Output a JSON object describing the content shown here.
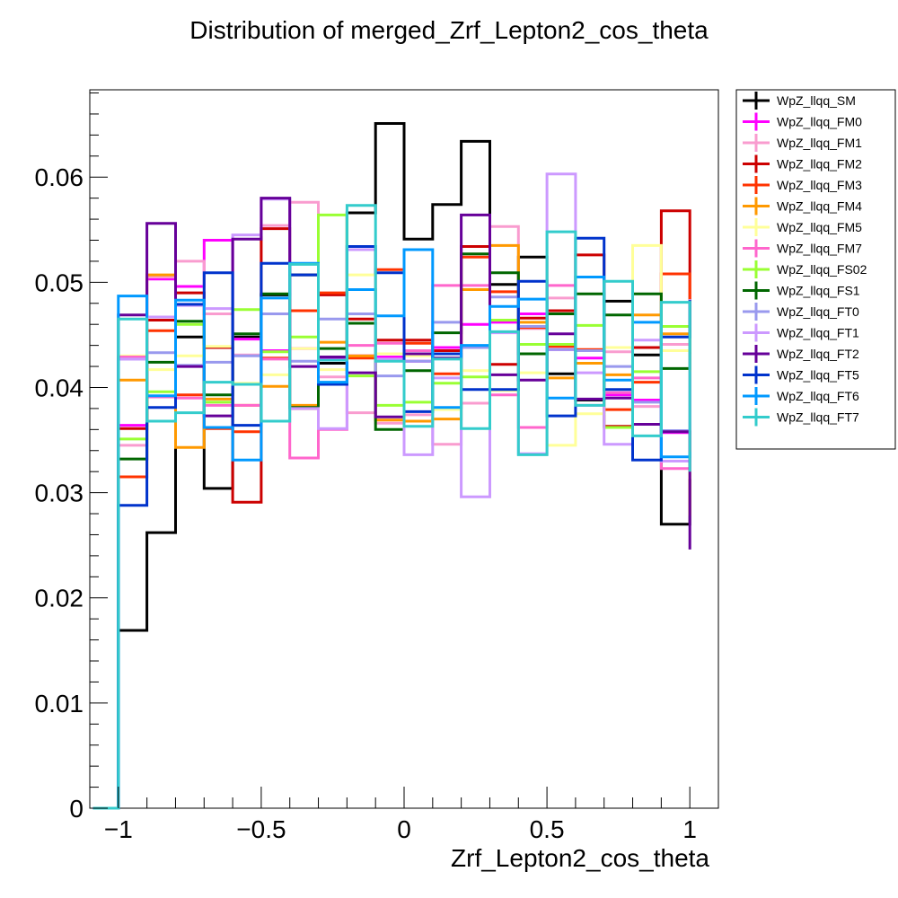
{
  "chart_data": {
    "type": "line",
    "title": "Distribution of merged_Zrf_Lepton2_cos_theta",
    "xlabel": "Zrf_Lepton2_cos_theta",
    "ylabel": "",
    "xlim": [
      -1.1,
      1.1
    ],
    "ylim": [
      0,
      0.0683
    ],
    "grid": false,
    "legend_position": "right",
    "x_ticks": [
      {
        "value": -1,
        "label": "−1"
      },
      {
        "value": -0.5,
        "label": "−0.5"
      },
      {
        "value": 0,
        "label": "0"
      },
      {
        "value": 0.5,
        "label": "0.5"
      },
      {
        "value": 1,
        "label": "1"
      }
    ],
    "y_ticks": [
      {
        "value": 0,
        "label": "0"
      },
      {
        "value": 0.01,
        "label": "0.01"
      },
      {
        "value": 0.02,
        "label": "0.02"
      },
      {
        "value": 0.03,
        "label": "0.03"
      },
      {
        "value": 0.04,
        "label": "0.04"
      },
      {
        "value": 0.05,
        "label": "0.05"
      },
      {
        "value": 0.06,
        "label": "0.06"
      }
    ],
    "x_bin_edges": [
      -1.0,
      -0.9,
      -0.8,
      -0.7,
      -0.6,
      -0.5,
      -0.4,
      -0.3,
      -0.2,
      -0.1,
      0.0,
      0.1,
      0.2,
      0.3,
      0.4,
      0.5,
      0.6,
      0.7,
      0.8,
      0.9,
      1.0
    ],
    "series": [
      {
        "name": "WpZ_llqq_SM",
        "color": "#000000",
        "values": [
          0.0169,
          0.0262,
          0.0448,
          0.0304,
          0.0448,
          0.0488,
          0.0507,
          0.0423,
          0.0566,
          0.0651,
          0.0541,
          0.0574,
          0.0634,
          0.0498,
          0.0524,
          0.0413,
          0.0388,
          0.0482,
          0.0431,
          0.027,
          0.0313
        ]
      },
      {
        "name": "WpZ_llqq_FM0",
        "color": "#ff00ff",
        "values": [
          0.0364,
          0.0503,
          0.0496,
          0.054,
          0.0446,
          0.0435,
          0.0437,
          0.0427,
          0.043,
          0.0429,
          0.0425,
          0.0438,
          0.046,
          0.0462,
          0.047,
          0.0436,
          0.0428,
          0.0393,
          0.0388,
          0.0357,
          0.0367
        ]
      },
      {
        "name": "WpZ_llqq_FM1",
        "color": "#f99ccf",
        "values": [
          0.0345,
          0.0505,
          0.052,
          0.047,
          0.0431,
          0.0554,
          0.0576,
          0.041,
          0.0376,
          0.0366,
          0.0374,
          0.0346,
          0.0385,
          0.0553,
          0.0456,
          0.0485,
          0.0435,
          0.0434,
          0.0382,
          0.0441,
          0.0458
        ]
      },
      {
        "name": "WpZ_llqq_FM2",
        "color": "#cc0000",
        "values": [
          0.0361,
          0.0464,
          0.049,
          0.0438,
          0.0291,
          0.0551,
          0.038,
          0.0488,
          0.0465,
          0.0445,
          0.0445,
          0.0435,
          0.0534,
          0.0422,
          0.0466,
          0.0473,
          0.0526,
          0.0363,
          0.0438,
          0.0568,
          0.0432
        ]
      },
      {
        "name": "WpZ_llqq_FM3",
        "color": "#ff3300",
        "values": [
          0.0315,
          0.0454,
          0.0393,
          0.0361,
          0.0358,
          0.0428,
          0.0473,
          0.049,
          0.0428,
          0.0512,
          0.0442,
          0.0413,
          0.0524,
          0.0491,
          0.0457,
          0.0439,
          0.0436,
          0.0379,
          0.0405,
          0.0508,
          0.0333
        ]
      },
      {
        "name": "WpZ_llqq_FM4",
        "color": "#ff9900",
        "values": [
          0.0407,
          0.0507,
          0.0343,
          0.0389,
          0.0383,
          0.0401,
          0.0383,
          0.0443,
          0.043,
          0.0369,
          0.0368,
          0.037,
          0.0493,
          0.0535,
          0.0462,
          0.0409,
          0.0423,
          0.0412,
          0.0469,
          0.0451,
          0.0278
        ]
      },
      {
        "name": "WpZ_llqq_FM5",
        "color": "#ffff99",
        "values": [
          0.043,
          0.0417,
          0.043,
          0.0439,
          0.0404,
          0.0412,
          0.0437,
          0.0417,
          0.0507,
          0.0432,
          0.043,
          0.0379,
          0.0416,
          0.0397,
          0.0414,
          0.0345,
          0.0375,
          0.0438,
          0.0535,
          0.0435,
          0.0448
        ]
      },
      {
        "name": "WpZ_llqq_FM7",
        "color": "#ff66cc",
        "values": [
          0.0429,
          0.0391,
          0.039,
          0.0383,
          0.0383,
          0.0427,
          0.0333,
          0.036,
          0.044,
          0.0442,
          0.0435,
          0.0497,
          0.0497,
          0.0393,
          0.0362,
          0.0497,
          0.0383,
          0.0395,
          0.0409,
          0.0323,
          0.0407
        ]
      },
      {
        "name": "WpZ_llqq_FS02",
        "color": "#99ff33",
        "values": [
          0.0351,
          0.0396,
          0.046,
          0.0386,
          0.0474,
          0.0434,
          0.0448,
          0.0564,
          0.0411,
          0.0383,
          0.0386,
          0.0404,
          0.041,
          0.0464,
          0.0441,
          0.0441,
          0.0459,
          0.0362,
          0.0415,
          0.0458,
          0.0433
        ]
      },
      {
        "name": "WpZ_llqq_FS1",
        "color": "#006600",
        "values": [
          0.0332,
          0.0424,
          0.0463,
          0.0393,
          0.0451,
          0.0489,
          0.0381,
          0.0437,
          0.0461,
          0.036,
          0.0416,
          0.0452,
          0.0527,
          0.0509,
          0.0432,
          0.047,
          0.0489,
          0.0469,
          0.0489,
          0.0418,
          0.0483
        ]
      },
      {
        "name": "WpZ_llqq_FT0",
        "color": "#9999ee",
        "values": [
          0.0427,
          0.0433,
          0.0421,
          0.0424,
          0.043,
          0.047,
          0.0425,
          0.0465,
          0.047,
          0.0411,
          0.0425,
          0.0462,
          0.0438,
          0.0486,
          0.0458,
          0.0436,
          0.0435,
          0.042,
          0.0386,
          0.0359,
          0.0415
        ]
      },
      {
        "name": "WpZ_llqq_FT1",
        "color": "#cc99ff",
        "values": [
          0.0427,
          0.0467,
          0.0478,
          0.0475,
          0.0545,
          0.0579,
          0.038,
          0.0361,
          0.0531,
          0.0427,
          0.0336,
          0.0409,
          0.0296,
          0.0452,
          0.0337,
          0.0603,
          0.0414,
          0.0346,
          0.0445,
          0.033,
          0.0484
        ]
      },
      {
        "name": "WpZ_llqq_FT2",
        "color": "#660099",
        "values": [
          0.0469,
          0.0556,
          0.042,
          0.0373,
          0.0541,
          0.058,
          0.042,
          0.0429,
          0.0414,
          0.0372,
          0.0432,
          0.0428,
          0.0564,
          0.0412,
          0.0407,
          0.0451,
          0.0389,
          0.039,
          0.0365,
          0.0358,
          0.0246
        ]
      },
      {
        "name": "WpZ_llqq_FT5",
        "color": "#0033cc",
        "values": [
          0.0288,
          0.0381,
          0.0479,
          0.0509,
          0.0364,
          0.0518,
          0.0507,
          0.0403,
          0.0534,
          0.0509,
          0.0377,
          0.0432,
          0.0398,
          0.0398,
          0.0501,
          0.0373,
          0.0542,
          0.0398,
          0.0331,
          0.0448,
          0.0483
        ]
      },
      {
        "name": "WpZ_llqq_FT6",
        "color": "#0099ff",
        "values": [
          0.0487,
          0.0392,
          0.0483,
          0.0362,
          0.0331,
          0.0485,
          0.0518,
          0.0405,
          0.0493,
          0.0468,
          0.0531,
          0.0381,
          0.044,
          0.0477,
          0.0484,
          0.039,
          0.0505,
          0.0407,
          0.0462,
          0.0334,
          0.0339
        ]
      },
      {
        "name": "WpZ_llqq_FT7",
        "color": "#33cccc",
        "values": [
          0.0465,
          0.0368,
          0.0376,
          0.0405,
          0.0403,
          0.0368,
          0.0517,
          0.0426,
          0.0573,
          0.0425,
          0.0363,
          0.0427,
          0.0361,
          0.0453,
          0.0336,
          0.0548,
          0.0383,
          0.0501,
          0.0354,
          0.0481,
          0.032
        ]
      }
    ]
  }
}
